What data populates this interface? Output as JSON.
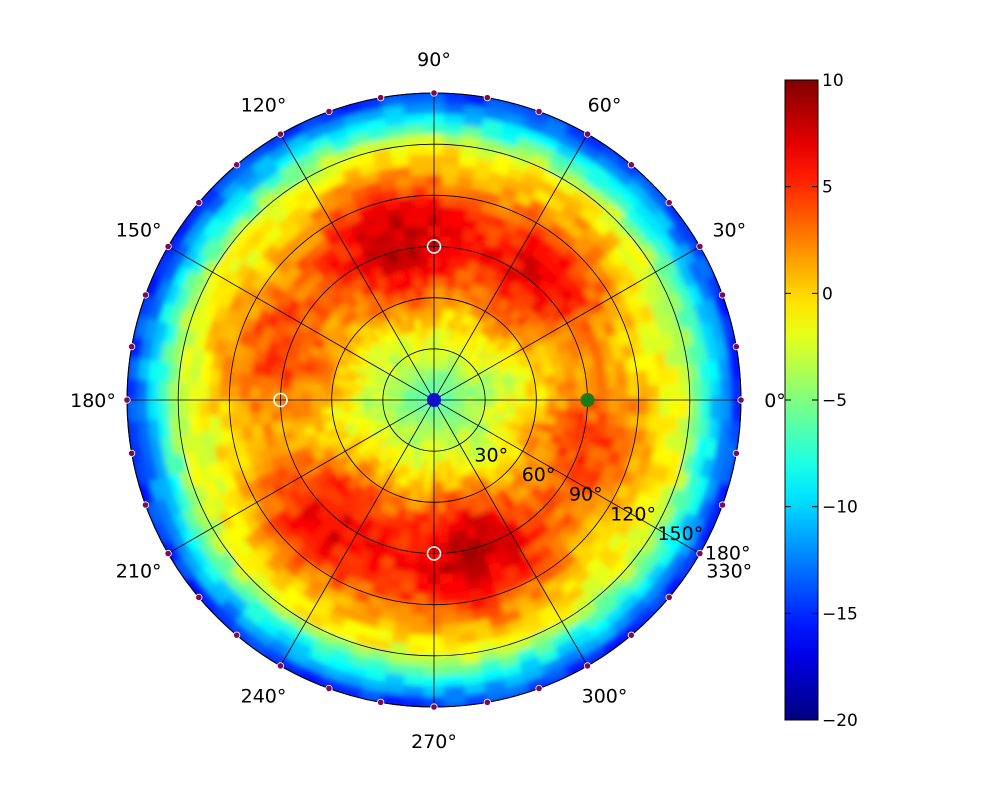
{
  "chart_data": {
    "type": "heatmap",
    "projection": "polar",
    "title": "",
    "angle_ticks": [
      {
        "value": 0,
        "label": "0°"
      },
      {
        "value": 30,
        "label": "30°"
      },
      {
        "value": 60,
        "label": "60°"
      },
      {
        "value": 90,
        "label": "90°"
      },
      {
        "value": 120,
        "label": "120°"
      },
      {
        "value": 150,
        "label": "150°"
      },
      {
        "value": 180,
        "label": "180°"
      },
      {
        "value": 210,
        "label": "210°"
      },
      {
        "value": 240,
        "label": "240°"
      },
      {
        "value": 270,
        "label": "270°"
      },
      {
        "value": 300,
        "label": "300°"
      },
      {
        "value": 330,
        "label": "330°"
      }
    ],
    "radial_ticks": [
      {
        "value": 30,
        "label": "30°"
      },
      {
        "value": 60,
        "label": "60°"
      },
      {
        "value": 90,
        "label": "90°"
      },
      {
        "value": 120,
        "label": "120°"
      },
      {
        "value": 150,
        "label": "150°"
      },
      {
        "value": 180,
        "label": "180°"
      }
    ],
    "rlim": [
      0,
      180
    ],
    "grid": true,
    "colorbar": {
      "location": "right",
      "colormap": "jet",
      "vmin": -20,
      "vmax": 10,
      "ticks": [
        {
          "value": 10,
          "label": "10"
        },
        {
          "value": 5,
          "label": "5"
        },
        {
          "value": 0,
          "label": "0"
        },
        {
          "value": -5,
          "label": "−5"
        },
        {
          "value": -10,
          "label": "−10"
        },
        {
          "value": -15,
          "label": "−15"
        },
        {
          "value": -20,
          "label": "−20"
        }
      ]
    },
    "heatmap_pattern": {
      "description_free_model": "value = a0 + a1*cos(2*theta) on rings; centre ~ -5, peak lobes at 90 and 270 deg near r=90, edge ~ -10",
      "center_value": -5,
      "peak_value": 7,
      "edge_value": -10,
      "lobe_angles": [
        90,
        270,
        30,
        150,
        210,
        330
      ]
    },
    "markers": [
      {
        "theta": 0,
        "r": 0,
        "color": "#1010c8",
        "edge": "#1010c8"
      },
      {
        "theta": 0,
        "r": 90,
        "color": "#1a7a1a",
        "edge": "#1a7a1a"
      },
      {
        "theta": 90,
        "r": 90,
        "color": "none",
        "edge": "#ffffff"
      },
      {
        "theta": 180,
        "r": 90,
        "color": "none",
        "edge": "#ffffff"
      },
      {
        "theta": 270,
        "r": 90,
        "color": "none",
        "edge": "#ffffff"
      }
    ],
    "edge_dot_spacing_deg": 10,
    "edge_dot_color": "#7a0a5a"
  }
}
